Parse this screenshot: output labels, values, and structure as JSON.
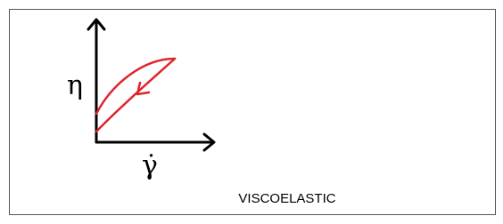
{
  "axes": {
    "y_label": "η",
    "x_label": "γ̇"
  },
  "caption": "VISCOELASTIC"
}
